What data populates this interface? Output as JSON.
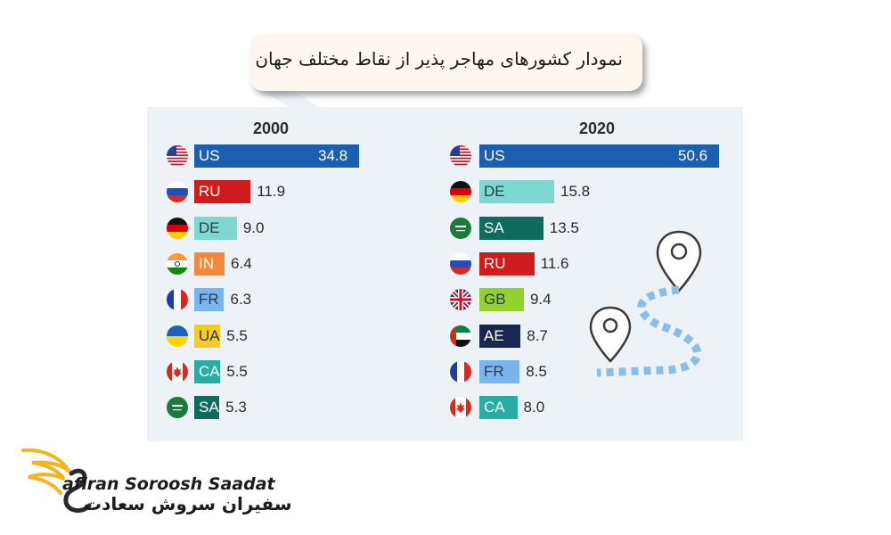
{
  "title": "نمودار کشورهای مهاجر پذیر از نقاط مختلف جهان",
  "brand": {
    "name_en": "afiran Soroosh Saadat",
    "name_fa": "سفیران سروش سعادت",
    "logo_icon": "golden-swan-wings-icon"
  },
  "chart_data": [
    {
      "type": "bar",
      "title": "2000",
      "categories": [
        "US",
        "RU",
        "DE",
        "IN",
        "FR",
        "UA",
        "CA",
        "SA"
      ],
      "values": [
        34.8,
        11.9,
        9.0,
        6.4,
        6.3,
        5.5,
        5.5,
        5.3
      ],
      "labels": [
        "34.8",
        "11.9",
        "9.0",
        "6.4",
        "6.3",
        "5.5",
        "5.5",
        "5.3"
      ],
      "colors": [
        "#1b5fae",
        "#cf1b1b",
        "#7ed7d0",
        "#f08a3a",
        "#7ab6ee",
        "#f3cb2c",
        "#27ada3",
        "#0f6b5c"
      ],
      "xlim": [
        0,
        50.6
      ]
    },
    {
      "type": "bar",
      "title": "2020",
      "categories": [
        "US",
        "DE",
        "SA",
        "RU",
        "GB",
        "AE",
        "FR",
        "CA"
      ],
      "values": [
        50.6,
        15.8,
        13.5,
        11.6,
        9.4,
        8.7,
        8.5,
        8.0
      ],
      "labels": [
        "50.6",
        "15.8",
        "13.5",
        "11.6",
        "9.4",
        "8.7",
        "8.5",
        "8.0"
      ],
      "colors": [
        "#1b5fae",
        "#7ed7d0",
        "#0f6b5c",
        "#cf1b1b",
        "#93d22e",
        "#19264d",
        "#7ab6ee",
        "#27ada3"
      ],
      "xlim": [
        0,
        50.6
      ]
    }
  ]
}
